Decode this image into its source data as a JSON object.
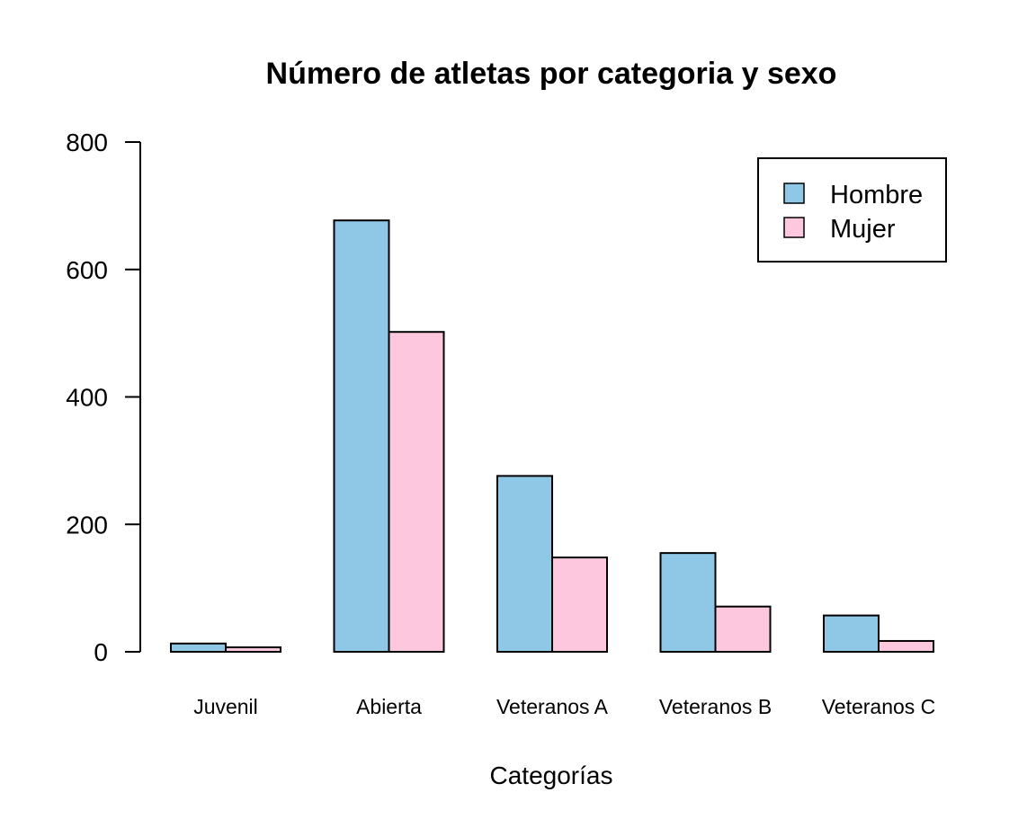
{
  "chart_data": {
    "type": "bar",
    "title": "Número de atletas por categoria y sexo",
    "xlabel": "Categorías",
    "ylabel": "",
    "categories": [
      "Juvenil",
      "Abierta",
      "Veteranos A",
      "Veteranos B",
      "Veteranos C"
    ],
    "series": [
      {
        "name": "Hombre",
        "color": "#8fc8e6",
        "values": [
          13,
          677,
          276,
          155,
          57
        ]
      },
      {
        "name": "Mujer",
        "color": "#fdc7dd",
        "values": [
          7,
          502,
          148,
          71,
          17
        ]
      }
    ],
    "ylim": [
      0,
      800
    ],
    "yticks": [
      "0",
      "200",
      "400",
      "600",
      "800"
    ],
    "grid": false,
    "legend_position": "top-right"
  }
}
